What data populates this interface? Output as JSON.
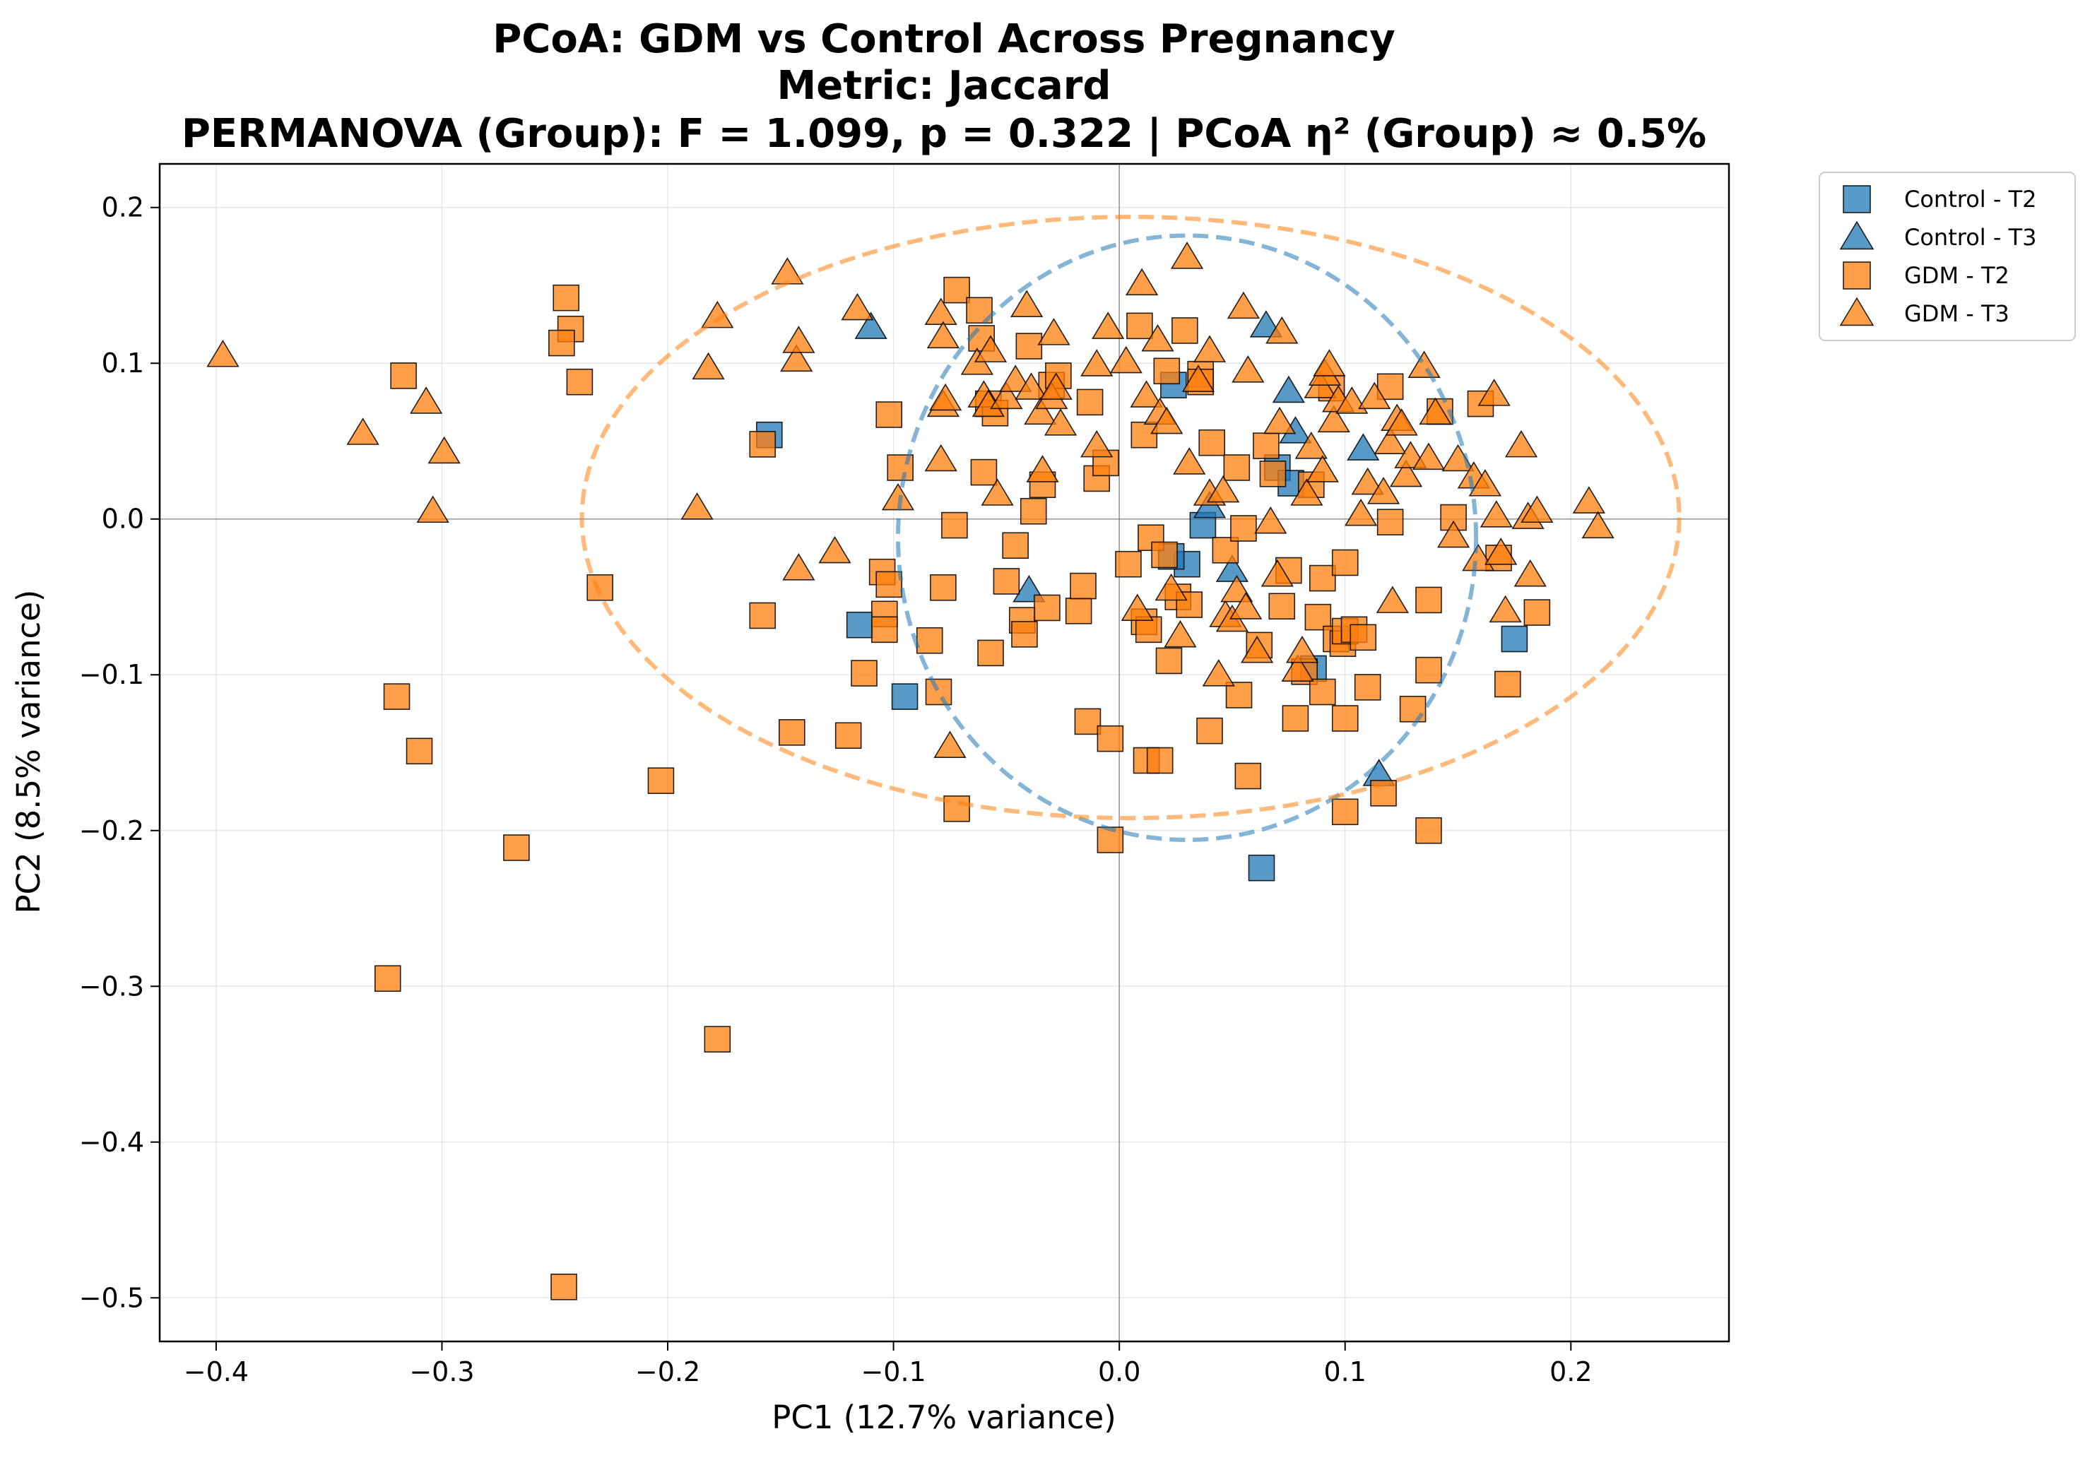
{
  "chart_data": {
    "type": "scatter",
    "title": "PCoA: GDM vs Control Across Pregnancy",
    "subtitle": "Metric: Jaccard",
    "subtitle2": "PERMANOVA (Group): F = 1.099, p = 0.322  |  PCoA η² (Group) ≈ 0.5%",
    "xlabel": "PC1 (12.7% variance)",
    "ylabel": "PC2 (8.5% variance)",
    "xlim": [
      -0.425,
      0.27
    ],
    "ylim": [
      -0.528,
      0.228
    ],
    "xticks": [
      -0.4,
      -0.3,
      -0.2,
      -0.1,
      0.0,
      0.1,
      0.2
    ],
    "yticks": [
      0.2,
      0.1,
      0.0,
      -0.1,
      -0.2,
      -0.3,
      -0.4,
      -0.5
    ],
    "xtick_labels": [
      "−0.4",
      "−0.3",
      "−0.2",
      "−0.1",
      "0.0",
      "0.1",
      "0.2"
    ],
    "ytick_labels": [
      "0.2",
      "0.1",
      "0.0",
      "−0.1",
      "−0.2",
      "−0.3",
      "−0.4",
      "−0.5"
    ],
    "grid": true,
    "legend_position": "outside top-right",
    "colors": {
      "Control": "#1f77b4",
      "GDM": "#ff7f0e"
    },
    "series": [
      {
        "name": "Control - T2",
        "group": "Control",
        "marker": "square",
        "points": [
          [
            -0.155,
            0.054
          ],
          [
            -0.115,
            -0.068
          ],
          [
            -0.095,
            -0.114
          ],
          [
            0.024,
            0.086
          ],
          [
            0.037,
            -0.004
          ],
          [
            0.03,
            -0.029
          ],
          [
            0.023,
            -0.024
          ],
          [
            0.07,
            0.033
          ],
          [
            0.076,
            0.023
          ],
          [
            0.086,
            -0.096
          ],
          [
            0.175,
            -0.077
          ],
          [
            0.063,
            -0.224
          ]
        ]
      },
      {
        "name": "Control - T3",
        "group": "Control",
        "marker": "triangle",
        "points": [
          [
            -0.11,
            0.123
          ],
          [
            -0.04,
            -0.046
          ],
          [
            0.065,
            0.124
          ],
          [
            0.078,
            0.056
          ],
          [
            0.075,
            0.082
          ],
          [
            0.108,
            0.045
          ],
          [
            0.115,
            -0.164
          ],
          [
            0.05,
            -0.033
          ],
          [
            0.04,
            0.008
          ]
        ]
      },
      {
        "name": "GDM - T2",
        "group": "GDM",
        "marker": "square",
        "points": [
          [
            -0.245,
            0.142
          ],
          [
            -0.243,
            0.122
          ],
          [
            -0.247,
            0.113
          ],
          [
            -0.239,
            0.088
          ],
          [
            -0.317,
            0.092
          ],
          [
            -0.158,
            0.048
          ],
          [
            -0.23,
            -0.044
          ],
          [
            -0.32,
            -0.114
          ],
          [
            -0.31,
            -0.149
          ],
          [
            -0.267,
            -0.211
          ],
          [
            -0.203,
            -0.168
          ],
          [
            -0.324,
            -0.295
          ],
          [
            -0.178,
            -0.334
          ],
          [
            -0.246,
            -0.493
          ],
          [
            -0.158,
            -0.062
          ],
          [
            -0.145,
            -0.137
          ],
          [
            -0.12,
            -0.139
          ],
          [
            -0.113,
            -0.099
          ],
          [
            -0.105,
            -0.034
          ],
          [
            -0.102,
            -0.042
          ],
          [
            -0.104,
            -0.061
          ],
          [
            -0.104,
            -0.071
          ],
          [
            -0.102,
            0.067
          ],
          [
            -0.097,
            0.033
          ],
          [
            -0.084,
            -0.078
          ],
          [
            -0.08,
            -0.111
          ],
          [
            -0.078,
            -0.044
          ],
          [
            -0.073,
            -0.004
          ],
          [
            -0.072,
            -0.186
          ],
          [
            -0.072,
            0.147
          ],
          [
            -0.062,
            0.134
          ],
          [
            -0.061,
            0.116
          ],
          [
            -0.058,
            0.074
          ],
          [
            -0.055,
            0.068
          ],
          [
            -0.06,
            0.03
          ],
          [
            -0.057,
            -0.086
          ],
          [
            -0.05,
            -0.04
          ],
          [
            -0.046,
            -0.017
          ],
          [
            -0.043,
            -0.065
          ],
          [
            -0.042,
            -0.074
          ],
          [
            -0.04,
            0.111
          ],
          [
            -0.038,
            0.005
          ],
          [
            -0.034,
            0.022
          ],
          [
            -0.032,
            -0.057
          ],
          [
            -0.03,
            0.086
          ],
          [
            -0.027,
            0.092
          ],
          [
            -0.018,
            -0.059
          ],
          [
            -0.016,
            -0.043
          ],
          [
            -0.014,
            -0.13
          ],
          [
            -0.013,
            0.075
          ],
          [
            -0.01,
            0.026
          ],
          [
            -0.006,
            0.036
          ],
          [
            -0.004,
            -0.141
          ],
          [
            -0.004,
            -0.206
          ],
          [
            0.004,
            -0.029
          ],
          [
            0.009,
            0.124
          ],
          [
            0.011,
            0.054
          ],
          [
            0.011,
            -0.066
          ],
          [
            0.013,
            -0.071
          ],
          [
            0.014,
            -0.012
          ],
          [
            0.012,
            -0.155
          ],
          [
            0.018,
            -0.155
          ],
          [
            0.02,
            -0.023
          ],
          [
            0.021,
            0.095
          ],
          [
            0.022,
            -0.091
          ],
          [
            0.026,
            -0.05
          ],
          [
            0.029,
            0.121
          ],
          [
            0.031,
            -0.055
          ],
          [
            0.036,
            0.093
          ],
          [
            0.036,
            0.088
          ],
          [
            0.041,
            0.049
          ],
          [
            0.04,
            -0.136
          ],
          [
            0.047,
            -0.02
          ],
          [
            0.052,
            0.033
          ],
          [
            0.053,
            -0.113
          ],
          [
            0.055,
            -0.006
          ],
          [
            0.057,
            -0.165
          ],
          [
            0.062,
            -0.081
          ],
          [
            0.065,
            0.047
          ],
          [
            0.068,
            0.029
          ],
          [
            0.072,
            -0.056
          ],
          [
            0.075,
            -0.033
          ],
          [
            0.078,
            -0.128
          ],
          [
            0.082,
            -0.098
          ],
          [
            0.085,
            0.022
          ],
          [
            0.088,
            -0.063
          ],
          [
            0.09,
            -0.111
          ],
          [
            0.09,
            -0.038
          ],
          [
            0.094,
            0.084
          ],
          [
            0.096,
            -0.077
          ],
          [
            0.099,
            -0.08
          ],
          [
            0.1,
            -0.072
          ],
          [
            0.1,
            -0.028
          ],
          [
            0.1,
            -0.128
          ],
          [
            0.1,
            -0.188
          ],
          [
            0.104,
            -0.071
          ],
          [
            0.108,
            -0.076
          ],
          [
            0.11,
            -0.108
          ],
          [
            0.117,
            -0.176
          ],
          [
            0.12,
            0.085
          ],
          [
            0.12,
            -0.002
          ],
          [
            0.13,
            -0.122
          ],
          [
            0.137,
            -0.052
          ],
          [
            0.137,
            -0.097
          ],
          [
            0.137,
            -0.2
          ],
          [
            0.142,
            0.069
          ],
          [
            0.148,
            0.001
          ],
          [
            0.16,
            0.074
          ],
          [
            0.168,
            -0.025
          ],
          [
            0.172,
            -0.106
          ],
          [
            0.185,
            -0.06
          ]
        ]
      },
      {
        "name": "GDM - T3",
        "group": "GDM",
        "marker": "triangle",
        "points": [
          [
            -0.397,
            0.105
          ],
          [
            -0.335,
            0.055
          ],
          [
            -0.307,
            0.075
          ],
          [
            -0.299,
            0.043
          ],
          [
            -0.304,
            0.005
          ],
          [
            -0.187,
            0.007
          ],
          [
            -0.182,
            0.097
          ],
          [
            -0.178,
            0.13
          ],
          [
            -0.147,
            0.158
          ],
          [
            -0.143,
            0.102
          ],
          [
            -0.142,
            0.114
          ],
          [
            -0.142,
            -0.032
          ],
          [
            -0.126,
            -0.021
          ],
          [
            -0.116,
            0.135
          ],
          [
            -0.098,
            0.013
          ],
          [
            -0.079,
            0.132
          ],
          [
            -0.078,
            0.117
          ],
          [
            -0.078,
            0.073
          ],
          [
            -0.077,
            0.077
          ],
          [
            -0.079,
            0.038
          ],
          [
            -0.075,
            -0.146
          ],
          [
            -0.063,
            0.1
          ],
          [
            -0.06,
            0.079
          ],
          [
            -0.058,
            0.073
          ],
          [
            -0.057,
            0.108
          ],
          [
            -0.054,
            0.016
          ],
          [
            -0.05,
            0.078
          ],
          [
            -0.046,
            0.089
          ],
          [
            -0.041,
            0.137
          ],
          [
            -0.039,
            0.084
          ],
          [
            -0.035,
            0.068
          ],
          [
            -0.034,
            0.031
          ],
          [
            -0.03,
            0.078
          ],
          [
            -0.029,
            0.119
          ],
          [
            -0.028,
            0.084
          ],
          [
            -0.026,
            0.061
          ],
          [
            -0.01,
            0.047
          ],
          [
            -0.01,
            0.099
          ],
          [
            -0.005,
            0.123
          ],
          [
            0.003,
            0.101
          ],
          [
            0.008,
            -0.058
          ],
          [
            0.01,
            0.151
          ],
          [
            0.012,
            0.079
          ],
          [
            0.017,
            0.115
          ],
          [
            0.018,
            0.068
          ],
          [
            0.021,
            0.062
          ],
          [
            0.023,
            -0.045
          ],
          [
            0.027,
            -0.075
          ],
          [
            0.03,
            0.168
          ],
          [
            0.031,
            0.036
          ],
          [
            0.035,
            0.089
          ],
          [
            0.04,
            0.108
          ],
          [
            0.04,
            0.016
          ],
          [
            0.044,
            -0.1
          ],
          [
            0.046,
            0.018
          ],
          [
            0.047,
            -0.062
          ],
          [
            0.05,
            -0.065
          ],
          [
            0.052,
            -0.046
          ],
          [
            0.055,
            0.136
          ],
          [
            0.056,
            -0.057
          ],
          [
            0.057,
            0.095
          ],
          [
            0.061,
            -0.085
          ],
          [
            0.067,
            -0.002
          ],
          [
            0.07,
            -0.036
          ],
          [
            0.071,
            0.062
          ],
          [
            0.072,
            0.12
          ],
          [
            0.079,
            -0.097
          ],
          [
            0.081,
            -0.085
          ],
          [
            0.083,
            0.016
          ],
          [
            0.085,
            0.046
          ],
          [
            0.089,
            0.085
          ],
          [
            0.09,
            0.031
          ],
          [
            0.091,
            0.093
          ],
          [
            0.093,
            0.099
          ],
          [
            0.095,
            0.063
          ],
          [
            0.097,
            0.076
          ],
          [
            0.103,
            0.075
          ],
          [
            0.107,
            0.003
          ],
          [
            0.11,
            0.023
          ],
          [
            0.113,
            0.078
          ],
          [
            0.117,
            0.017
          ],
          [
            0.12,
            0.049
          ],
          [
            0.121,
            -0.053
          ],
          [
            0.123,
            0.064
          ],
          [
            0.125,
            0.061
          ],
          [
            0.127,
            0.028
          ],
          [
            0.129,
            0.04
          ],
          [
            0.135,
            0.098
          ],
          [
            0.137,
            0.039
          ],
          [
            0.14,
            0.068
          ],
          [
            0.148,
            -0.011
          ],
          [
            0.15,
            0.038
          ],
          [
            0.157,
            0.027
          ],
          [
            0.159,
            -0.026
          ],
          [
            0.162,
            0.022
          ],
          [
            0.166,
            0.08
          ],
          [
            0.167,
            0.002
          ],
          [
            0.169,
            -0.022
          ],
          [
            0.171,
            -0.059
          ],
          [
            0.178,
            0.047
          ],
          [
            0.181,
            0.001
          ],
          [
            0.182,
            -0.036
          ],
          [
            0.185,
            0.005
          ],
          [
            0.208,
            0.011
          ],
          [
            0.212,
            -0.005
          ]
        ]
      }
    ],
    "ellipses": [
      {
        "group": "Control",
        "center": [
          0.03,
          -0.012
        ],
        "half_width": 0.128,
        "half_height": 0.194
      },
      {
        "group": "GDM",
        "center": [
          0.005,
          0.001
        ],
        "half_width": 0.243,
        "half_height": 0.193
      }
    ]
  }
}
